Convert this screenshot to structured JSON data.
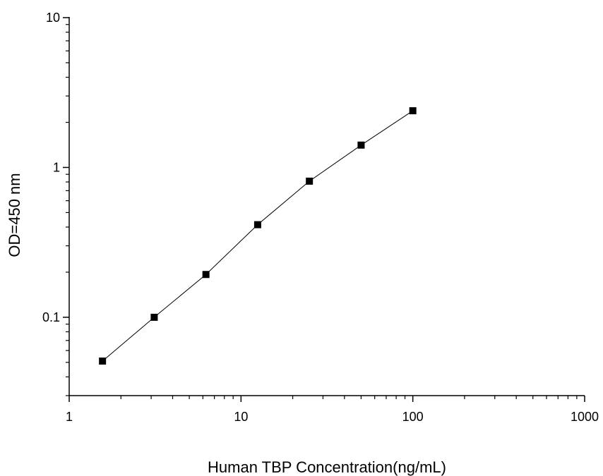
{
  "chart_data": {
    "type": "scatter",
    "title": "",
    "xlabel": "Human TBP Concentration(ng/mL)",
    "ylabel": "OD=450 nm",
    "xscale": "log",
    "yscale": "log",
    "xlim": [
      1,
      1000
    ],
    "ylim": [
      0.03,
      10
    ],
    "grid": false,
    "legend": "none",
    "x_ticks": [
      {
        "value": 1,
        "label": "1"
      },
      {
        "value": 10,
        "label": "10"
      },
      {
        "value": 100,
        "label": "100"
      },
      {
        "value": 1000,
        "label": "1000"
      }
    ],
    "y_ticks": [
      {
        "value": 0.1,
        "label": "0.1"
      },
      {
        "value": 1,
        "label": "1"
      },
      {
        "value": 10,
        "label": "10"
      }
    ],
    "series": [
      {
        "x": [
          1.5625,
          3.125,
          6.25,
          12.5,
          25,
          50,
          100
        ],
        "y": [
          0.051,
          0.1,
          0.193,
          0.415,
          0.81,
          1.41,
          2.39
        ]
      }
    ],
    "colors": {
      "marker": "#000000",
      "line": "#000000",
      "axis": "#000000"
    },
    "marker": "square",
    "connect_points": true
  }
}
